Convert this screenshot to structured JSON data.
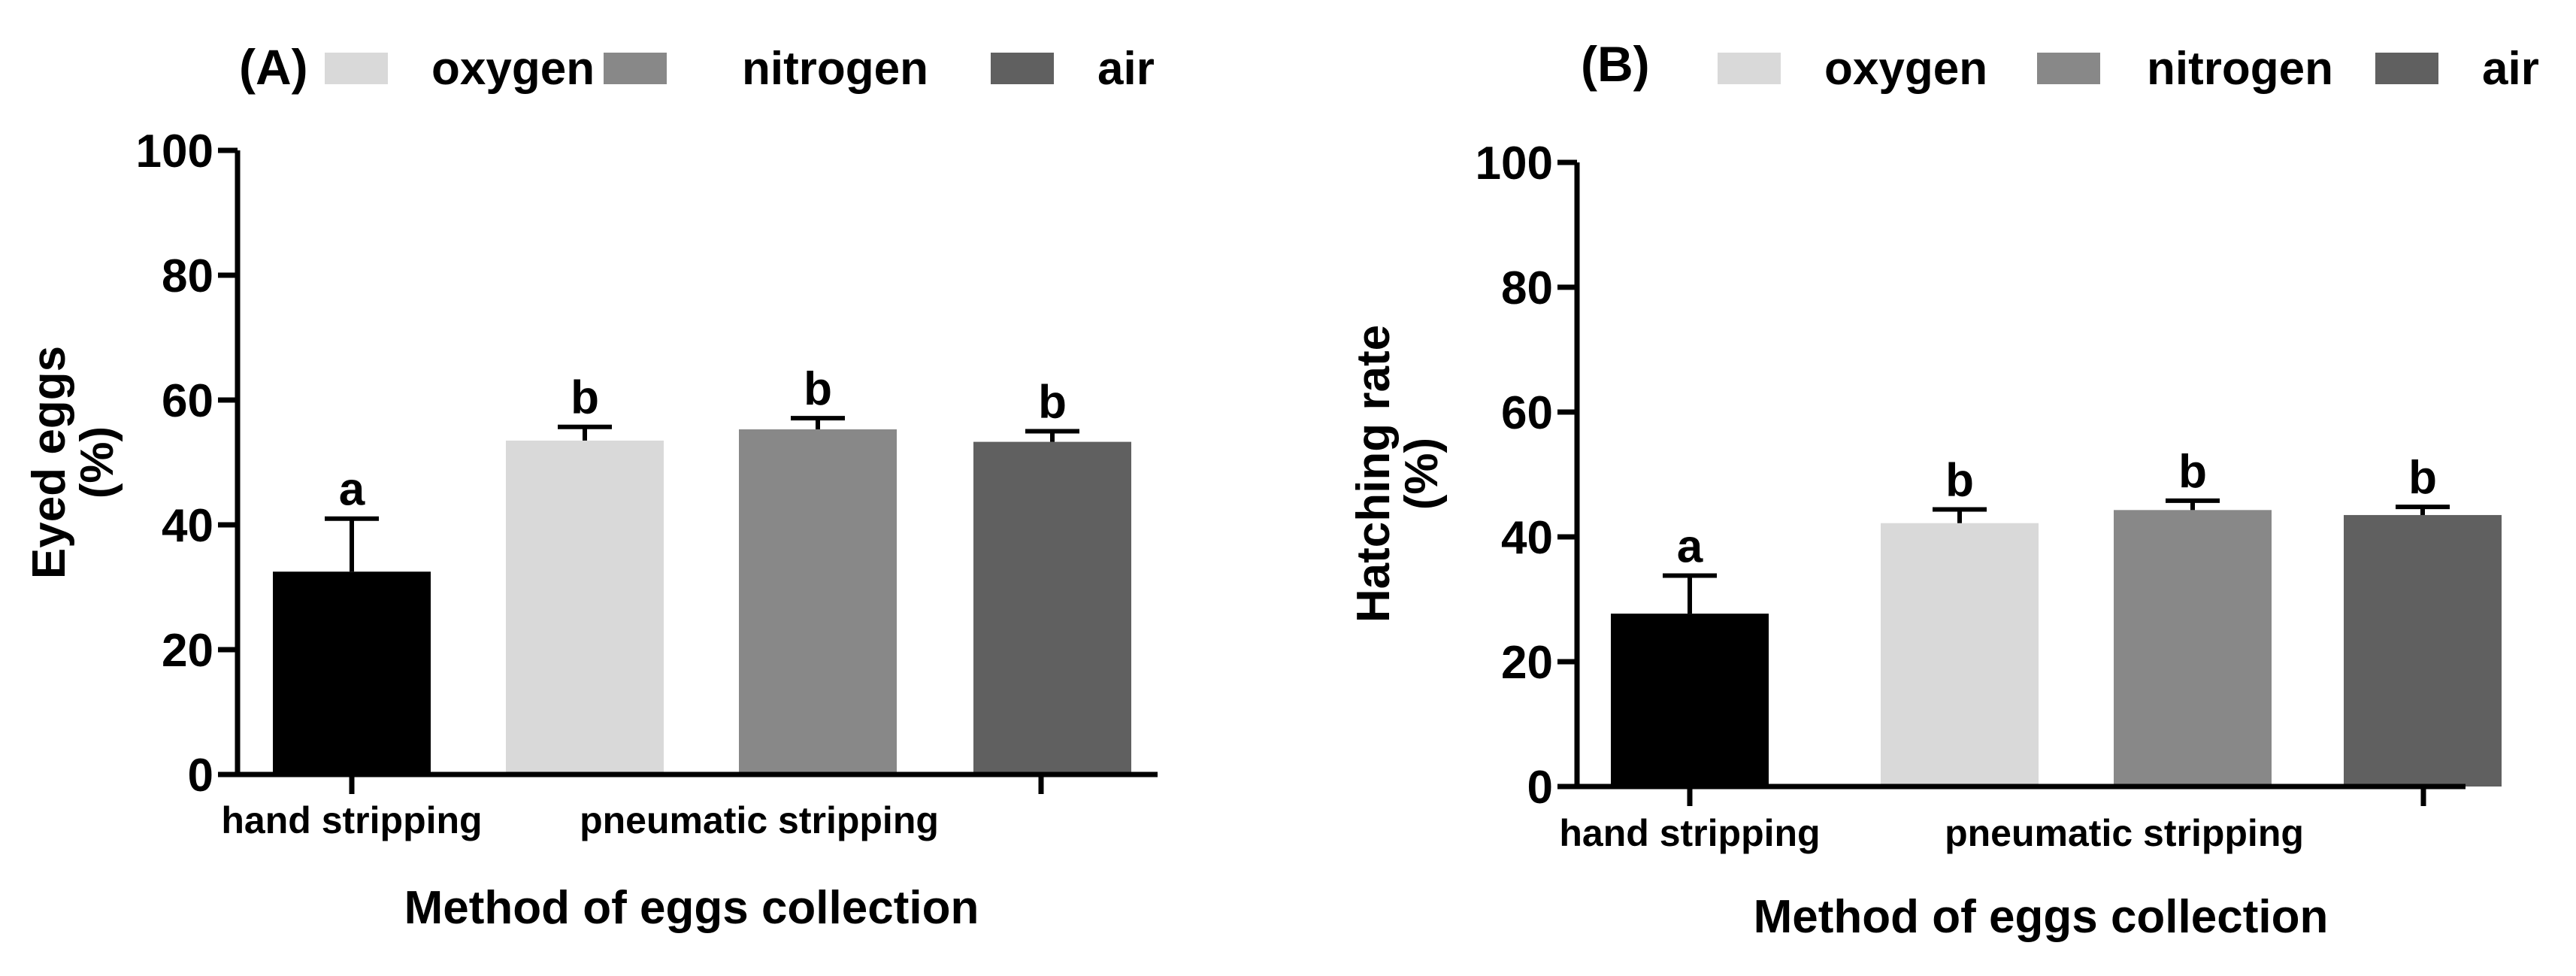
{
  "chart_data": [
    {
      "panel_label": "(A)",
      "type": "bar",
      "title": "",
      "xlabel": "Method of eggs collection",
      "ylabel_line1": "Eyed eggs",
      "ylabel_line2": "(%)",
      "ylim": [
        0,
        100
      ],
      "yticks": [
        "0",
        "20",
        "40",
        "60",
        "80",
        "100"
      ],
      "group_labels": [
        "hand stripping",
        "pneumatic stripping"
      ],
      "legend": [
        {
          "name": "oxygen",
          "color": "#d9d9d9"
        },
        {
          "name": "nitrogen",
          "color": "#888888"
        },
        {
          "name": "air",
          "color": "#606060"
        }
      ],
      "bars": [
        {
          "value": 32.5,
          "error": 8.5,
          "letter": "a",
          "color": "#000000"
        },
        {
          "value": 53.5,
          "error": 2.2,
          "letter": "b",
          "color": "#d9d9d9"
        },
        {
          "value": 55.3,
          "error": 1.8,
          "letter": "b",
          "color": "#888888"
        },
        {
          "value": 53.3,
          "error": 1.7,
          "letter": "b",
          "color": "#606060"
        }
      ]
    },
    {
      "panel_label": "(B)",
      "type": "bar",
      "title": "",
      "xlabel": "Method of eggs collection",
      "ylabel_line1": "Hatching rate",
      "ylabel_line2": "(%)",
      "ylim": [
        0,
        100
      ],
      "yticks": [
        "0",
        "20",
        "40",
        "60",
        "80",
        "100"
      ],
      "group_labels": [
        "hand stripping",
        "pneumatic stripping"
      ],
      "legend": [
        {
          "name": "oxygen",
          "color": "#d9d9d9"
        },
        {
          "name": "nitrogen",
          "color": "#888888"
        },
        {
          "name": "air",
          "color": "#606060"
        }
      ],
      "bars": [
        {
          "value": 27.7,
          "error": 6.1,
          "letter": "a",
          "color": "#000000"
        },
        {
          "value": 42.2,
          "error": 2.2,
          "letter": "b",
          "color": "#d9d9d9"
        },
        {
          "value": 44.3,
          "error": 1.5,
          "letter": "b",
          "color": "#888888"
        },
        {
          "value": 43.5,
          "error": 1.3,
          "letter": "b",
          "color": "#606060"
        }
      ]
    }
  ]
}
